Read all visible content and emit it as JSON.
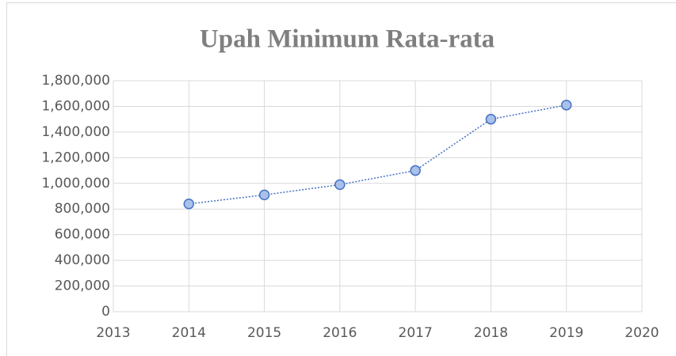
{
  "chart_data": {
    "type": "line",
    "title": "Upah Minimum Rata-rata",
    "x": [
      2014,
      2015,
      2016,
      2017,
      2018,
      2019
    ],
    "values": [
      840000,
      910000,
      990000,
      1100000,
      1500000,
      1610000
    ],
    "color": "#4472c4",
    "marker_fill": "#a9c1ea",
    "xlim": [
      2013,
      2020
    ],
    "xticks": [
      2013,
      2014,
      2015,
      2016,
      2017,
      2018,
      2019,
      2020
    ],
    "ylim": [
      0,
      1800000
    ],
    "yticks": [
      0,
      {
        "value": 200000,
        "label": "200,000"
      },
      {
        "value": 400000,
        "label": "400,000"
      },
      {
        "value": 600000,
        "label": "600,000"
      },
      {
        "value": 800000,
        "label": "800,000"
      },
      {
        "value": 1000000,
        "label": "1,000,000"
      },
      {
        "value": 1200000,
        "label": "1,200,000"
      },
      {
        "value": 1400000,
        "label": "1,400,000"
      },
      {
        "value": 1600000,
        "label": "1,600,000"
      },
      {
        "value": 1800000,
        "label": "1,800,000"
      }
    ],
    "grid": true
  }
}
